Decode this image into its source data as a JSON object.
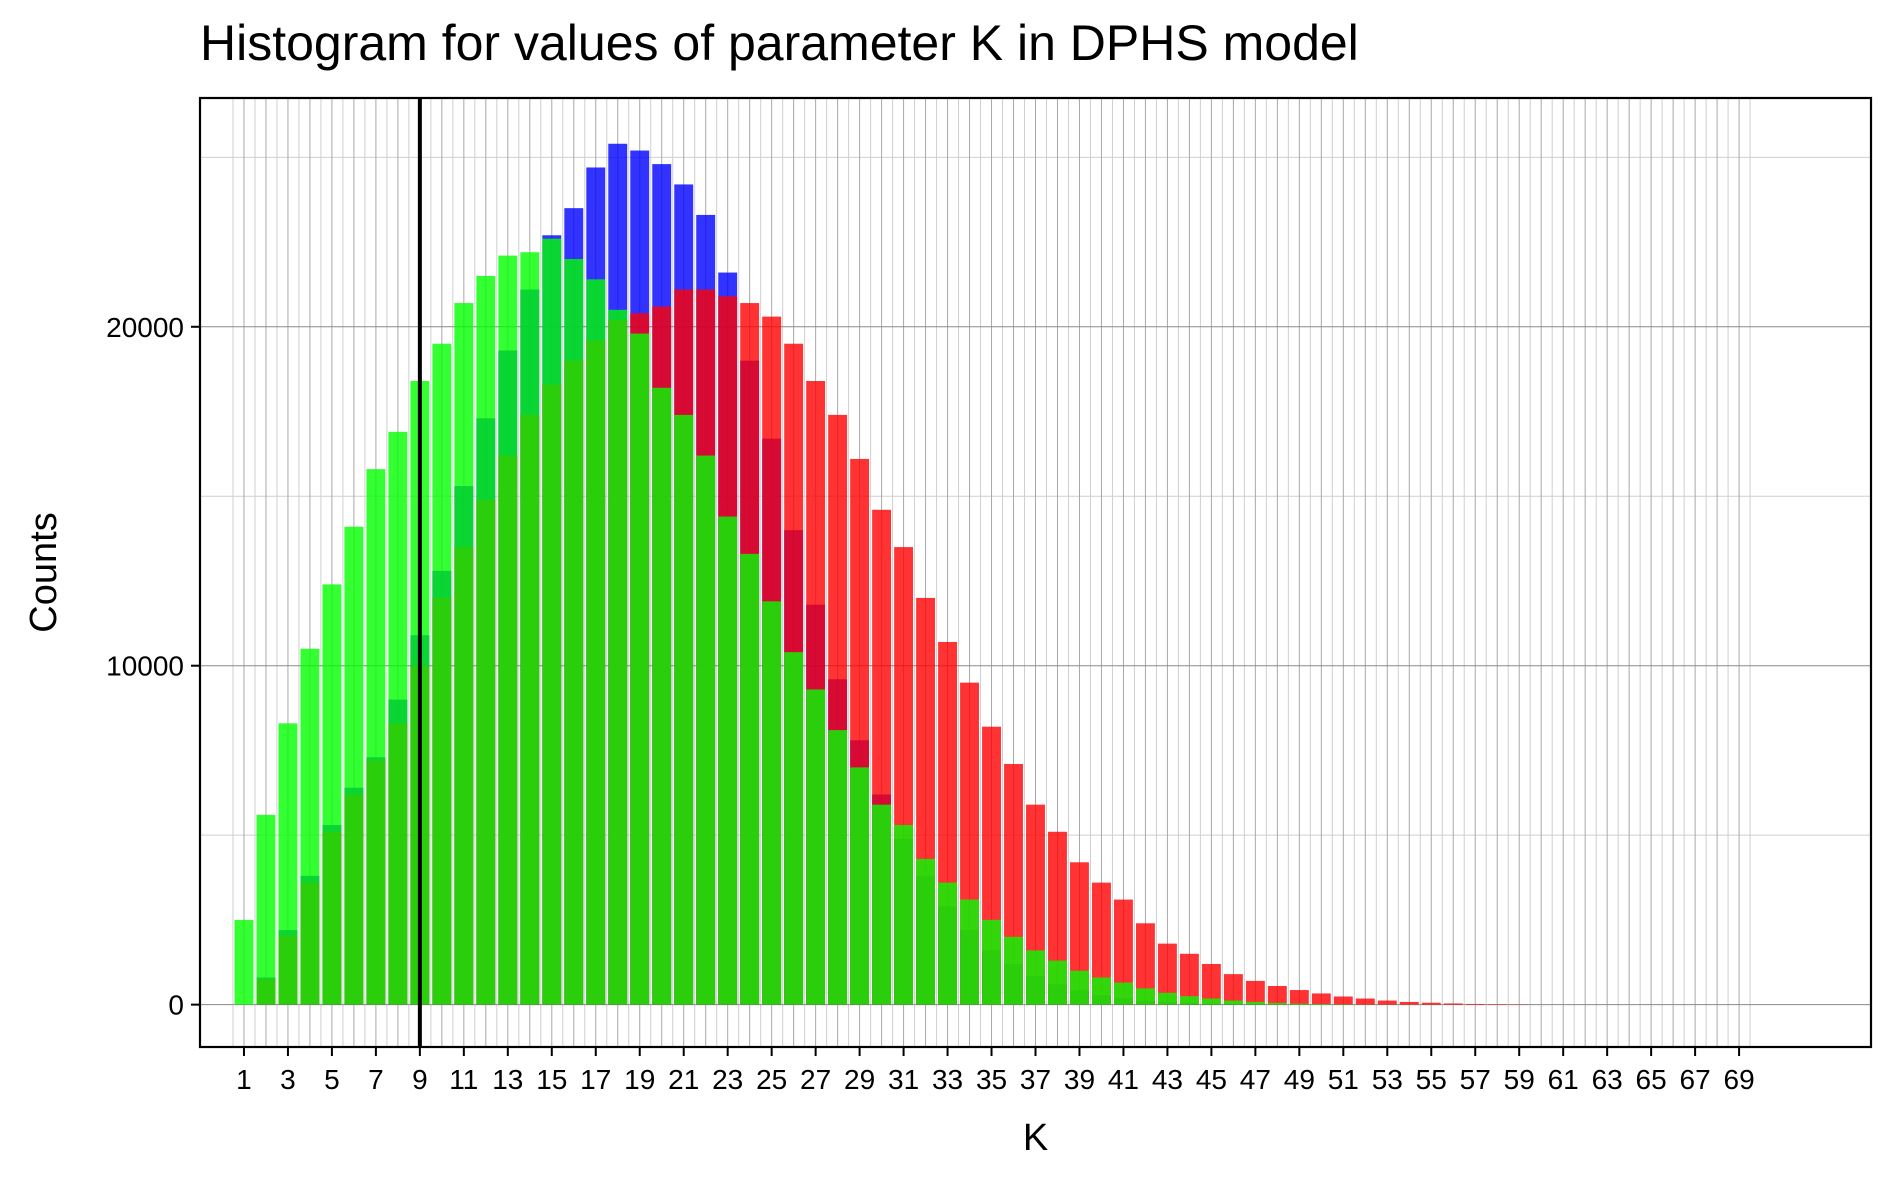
{
  "chart_data": {
    "type": "bar",
    "title": "Histogram for values of parameter K in DPHS model",
    "xlabel": "K",
    "ylabel": "Counts",
    "x": [
      1,
      2,
      3,
      4,
      5,
      6,
      7,
      8,
      9,
      10,
      11,
      12,
      13,
      14,
      15,
      16,
      17,
      18,
      19,
      20,
      21,
      22,
      23,
      24,
      25,
      26,
      27,
      28,
      29,
      30,
      31,
      32,
      33,
      34,
      35,
      36,
      37,
      38,
      39,
      40,
      41,
      42,
      43,
      44,
      45,
      46,
      47,
      48,
      49,
      50,
      51,
      52,
      53,
      54,
      55,
      56,
      57,
      58,
      59,
      60,
      61,
      62,
      63,
      64,
      65,
      66,
      67,
      68,
      69
    ],
    "x_tick_labels": [
      "1",
      "3",
      "5",
      "7",
      "9",
      "11",
      "13",
      "15",
      "17",
      "19",
      "21",
      "23",
      "25",
      "27",
      "29",
      "31",
      "33",
      "35",
      "37",
      "39",
      "41",
      "43",
      "45",
      "47",
      "49",
      "51",
      "53",
      "55",
      "57",
      "59",
      "61",
      "63",
      "65",
      "67",
      "69"
    ],
    "y_ticks": [
      0,
      10000,
      20000
    ],
    "xlim": [
      -1,
      75
    ],
    "ylim": [
      -1250,
      26750
    ],
    "grid": true,
    "vertical_line_x": 9,
    "series": [
      {
        "color": "#0000ff",
        "values": [
          0,
          800,
          2200,
          3800,
          5300,
          6400,
          7300,
          9000,
          10900,
          12800,
          15300,
          17300,
          19300,
          21100,
          22700,
          23500,
          24700,
          25400,
          25200,
          24800,
          24200,
          23300,
          21600,
          19000,
          16700,
          14000,
          11800,
          9600,
          7800,
          6200,
          4900,
          3800,
          2900,
          2200,
          1600,
          1200,
          850,
          600,
          420,
          280,
          190,
          120,
          75,
          45,
          25,
          15,
          8,
          4,
          2,
          1,
          0,
          0,
          0,
          0,
          0,
          0,
          0,
          0,
          0,
          0,
          0,
          0,
          0,
          0,
          0,
          0,
          0,
          0,
          0
        ]
      },
      {
        "color": "#ff0000",
        "values": [
          0,
          750,
          2050,
          3600,
          5100,
          6200,
          7200,
          8300,
          10000,
          12000,
          13500,
          14900,
          16200,
          17400,
          18300,
          19000,
          19600,
          20200,
          20400,
          20600,
          21100,
          21100,
          20900,
          20700,
          20300,
          19500,
          18400,
          17400,
          16100,
          14600,
          13500,
          12000,
          10700,
          9500,
          8200,
          7100,
          5900,
          5100,
          4200,
          3600,
          3100,
          2400,
          1800,
          1500,
          1200,
          900,
          700,
          550,
          430,
          330,
          240,
          180,
          120,
          80,
          55,
          35,
          20,
          12,
          7,
          0,
          0,
          0,
          0,
          0,
          0,
          0,
          0,
          0,
          0
        ]
      },
      {
        "color": "#00ff00",
        "values": [
          2500,
          5600,
          8300,
          10500,
          12400,
          14100,
          15800,
          16900,
          18400,
          19500,
          20700,
          21500,
          22100,
          22200,
          22600,
          22000,
          21400,
          20500,
          19800,
          18200,
          17400,
          16200,
          14400,
          13300,
          11900,
          10400,
          9300,
          8100,
          7000,
          5900,
          5300,
          4300,
          3600,
          3100,
          2500,
          2000,
          1600,
          1300,
          1000,
          800,
          650,
          480,
          350,
          250,
          180,
          120,
          80,
          50,
          30,
          20,
          10,
          5,
          2,
          1,
          0,
          0,
          0,
          0,
          0,
          0,
          0,
          0,
          0,
          0,
          0,
          0,
          0,
          0,
          0
        ]
      }
    ]
  }
}
